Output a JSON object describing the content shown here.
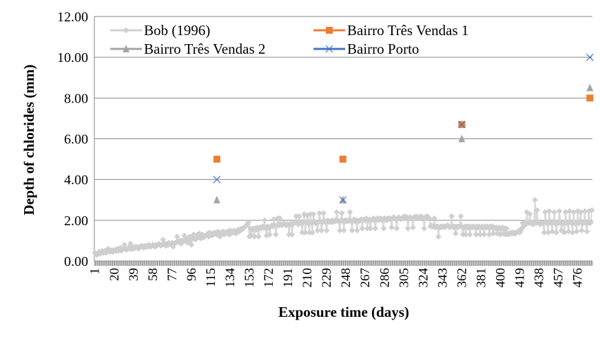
{
  "chart_data": {
    "type": "line",
    "title": "",
    "xlabel": "Exposure time (days)",
    "ylabel": "Depth of chlorides  (mm)",
    "ylim": [
      0,
      12
    ],
    "y_ticks": [
      "0.00",
      "2.00",
      "4.00",
      "6.00",
      "8.00",
      "10.00",
      "12.00"
    ],
    "n_categories": 490,
    "x_tick_labels": [
      "1",
      "20",
      "39",
      "58",
      "77",
      "96",
      "115",
      "134",
      "153",
      "172",
      "191",
      "210",
      "229",
      "248",
      "267",
      "286",
      "305",
      "324",
      "343",
      "362",
      "381",
      "400",
      "419",
      "438",
      "457",
      "476"
    ],
    "grid": "horizontal",
    "legend_position": "top",
    "series": [
      {
        "name": "Bob (1996)",
        "color": "#d0d0d0",
        "marker": "diamond",
        "line": true,
        "values": [
          0.4,
          0.35,
          0.3,
          0.4,
          0.45,
          0.35,
          0.4,
          0.5,
          0.4,
          0.45,
          0.5,
          0.4,
          0.45,
          0.6,
          0.5,
          0.45,
          0.5,
          0.55,
          0.45,
          0.5,
          0.55,
          0.5,
          0.6,
          0.5,
          0.55,
          0.65,
          0.5,
          0.55,
          0.6,
          0.8,
          0.6,
          0.55,
          0.6,
          0.65,
          0.6,
          0.85,
          0.6,
          0.65,
          0.6,
          0.7,
          0.65,
          0.7,
          0.65,
          0.6,
          0.7,
          0.7,
          0.75,
          0.7,
          0.65,
          0.75,
          0.7,
          0.75,
          0.7,
          0.8,
          0.75,
          0.7,
          0.75,
          0.8,
          0.75,
          0.7,
          0.8,
          0.75,
          0.8,
          0.85,
          0.8,
          0.75,
          0.8,
          1.05,
          0.8,
          0.85,
          0.75,
          0.85,
          0.8,
          0.9,
          0.85,
          0.8,
          0.9,
          0.7,
          0.85,
          0.9,
          0.9,
          1.2,
          0.95,
          0.9,
          1.0,
          0.85,
          1.0,
          0.95,
          1.25,
          1.0,
          1.05,
          0.9,
          1.0,
          1.2,
          1.05,
          0.8,
          1.1,
          1.3,
          1.1,
          1.05,
          1.1,
          1.3,
          1.2,
          1.35,
          1.1,
          1.2,
          1.3,
          1.15,
          1.2,
          1.25,
          1.3,
          1.35,
          1.2,
          1.4,
          1.3,
          1.25,
          1.35,
          1.3,
          1.4,
          1.35,
          1.3,
          1.45,
          1.35,
          1.2,
          1.4,
          1.35,
          1.45,
          1.3,
          1.4,
          1.35,
          1.45,
          1.4,
          1.3,
          1.5,
          1.35,
          1.45,
          1.4,
          1.5,
          1.45,
          1.35,
          1.5,
          1.55,
          1.45,
          1.5,
          1.6,
          1.55,
          1.6,
          1.65,
          1.7,
          1.75,
          1.8,
          1.9,
          1.2,
          1.6,
          1.25,
          1.55,
          1.6,
          1.2,
          1.6,
          1.55,
          1.65,
          1.2,
          1.6,
          1.65,
          1.6,
          1.7,
          1.65,
          2.0,
          1.6,
          1.25,
          1.7,
          1.65,
          1.3,
          1.7,
          1.75,
          1.7,
          2.05,
          1.75,
          1.3,
          1.75,
          2.1,
          1.75,
          2.1,
          1.8,
          1.75,
          1.8,
          1.85,
          1.8,
          1.75,
          1.8,
          1.8,
          1.3,
          1.8,
          1.85,
          1.3,
          1.8,
          1.85,
          1.9,
          2.2,
          1.85,
          1.8,
          2.2,
          1.9,
          1.85,
          1.4,
          1.9,
          2.3,
          1.4,
          1.9,
          2.25,
          1.85,
          1.4,
          2.3,
          1.9,
          1.4,
          2.3,
          1.95,
          1.85,
          1.9,
          1.5,
          1.9,
          2.35,
          1.95,
          1.5,
          1.9,
          2.35,
          1.95,
          1.9,
          1.5,
          2.0,
          1.95,
          1.9,
          1.95,
          2.0,
          1.9,
          1.95,
          2.0,
          1.95,
          2.4,
          2.0,
          1.95,
          1.5,
          2.0,
          2.35,
          1.95,
          1.5,
          2.0,
          1.95,
          2.0,
          1.95,
          2.0,
          2.4,
          1.95,
          1.5,
          2.0,
          2.05,
          1.95,
          2.0,
          1.5,
          2.0,
          1.95,
          2.0,
          2.05,
          1.6,
          2.0,
          2.05,
          2.0,
          2.1,
          1.6,
          2.0,
          2.05,
          1.6,
          2.0,
          2.05,
          2.1,
          2.0,
          1.6,
          2.05,
          2.1,
          2.0,
          2.05,
          2.1,
          2.0,
          2.05,
          1.6,
          2.1,
          2.05,
          2.0,
          2.1,
          2.05,
          2.1,
          2.05,
          1.65,
          2.1,
          2.15,
          2.1,
          2.05,
          1.6,
          2.1,
          2.15,
          2.1,
          2.05,
          2.1,
          2.15,
          2.1,
          2.2,
          2.1,
          2.15,
          1.6,
          2.1,
          2.15,
          2.1,
          2.1,
          1.65,
          2.15,
          2.1,
          2.2,
          2.15,
          2.1,
          2.15,
          2.1,
          2.2,
          2.15,
          2.1,
          1.6,
          2.15,
          2.1,
          2.2,
          2.15,
          2.1,
          1.7,
          1.75,
          1.7,
          1.7,
          2.1,
          1.65,
          1.7,
          1.7,
          1.2,
          1.65,
          1.7,
          1.65,
          1.7,
          1.7,
          1.65,
          1.7,
          1.7,
          1.75,
          1.7,
          1.65,
          1.7,
          2.2,
          1.7,
          1.65,
          1.7,
          1.35,
          1.7,
          1.65,
          1.7,
          1.7,
          2.2,
          1.7,
          1.3,
          1.65,
          1.7,
          1.3,
          1.7,
          1.65,
          1.7,
          1.3,
          1.65,
          1.7,
          1.65,
          1.7,
          1.65,
          1.3,
          1.7,
          1.65,
          1.7,
          1.3,
          1.65,
          1.7,
          1.65,
          1.3,
          1.7,
          1.65,
          1.7,
          1.65,
          1.3,
          1.7,
          1.65,
          1.7,
          1.35,
          1.65,
          1.6,
          1.65,
          1.35,
          1.6,
          1.65,
          1.3,
          1.6,
          1.65,
          1.35,
          1.6,
          1.3,
          1.6,
          1.35,
          1.3,
          1.35,
          1.4,
          1.35,
          1.4,
          1.35,
          1.4,
          1.35,
          1.4,
          1.45,
          1.5,
          1.4,
          1.5,
          1.6,
          1.85,
          1.7,
          1.9,
          1.8,
          2.4,
          1.85,
          1.9,
          2.3,
          1.85,
          1.9,
          1.8,
          1.9,
          3.0,
          1.85,
          2.5,
          1.9,
          1.85,
          1.8,
          1.85,
          1.9,
          1.85,
          1.4,
          2.4,
          1.9,
          1.85,
          1.4,
          2.45,
          1.9,
          1.85,
          1.45,
          1.9,
          2.4,
          1.85,
          1.4,
          1.9,
          1.85,
          2.45,
          1.9,
          1.5,
          1.85,
          1.9,
          1.4,
          2.4,
          1.85,
          1.9,
          1.45,
          2.45,
          1.9,
          1.85,
          1.4,
          2.4,
          1.85,
          1.9,
          1.45,
          2.45,
          1.85,
          1.9,
          2.4,
          1.5,
          1.85,
          1.9,
          2.45,
          1.85,
          1.45,
          1.9,
          2.45,
          1.85,
          1.9,
          2.5
        ]
      },
      {
        "name": "Bairro Três Vendas 1",
        "color": "#ed7d31",
        "marker": "square",
        "line": false,
        "points": [
          {
            "x": 121,
            "y": 5.0
          },
          {
            "x": 245,
            "y": 5.0
          },
          {
            "x": 362,
            "y": 6.7
          },
          {
            "x": 488,
            "y": 8.0
          }
        ]
      },
      {
        "name": "Bairro Três Vendas 2",
        "color": "#a5a5a5",
        "marker": "triangle",
        "line": false,
        "points": [
          {
            "x": 121,
            "y": 3.0
          },
          {
            "x": 245,
            "y": 3.0
          },
          {
            "x": 362,
            "y": 6.0
          },
          {
            "x": 488,
            "y": 8.5
          }
        ]
      },
      {
        "name": "Bairro Porto",
        "color": "#4472c4",
        "marker": "x",
        "line": false,
        "points": [
          {
            "x": 121,
            "y": 4.0
          },
          {
            "x": 245,
            "y": 3.0
          },
          {
            "x": 362,
            "y": 6.7
          },
          {
            "x": 488,
            "y": 10.0
          }
        ]
      }
    ]
  }
}
